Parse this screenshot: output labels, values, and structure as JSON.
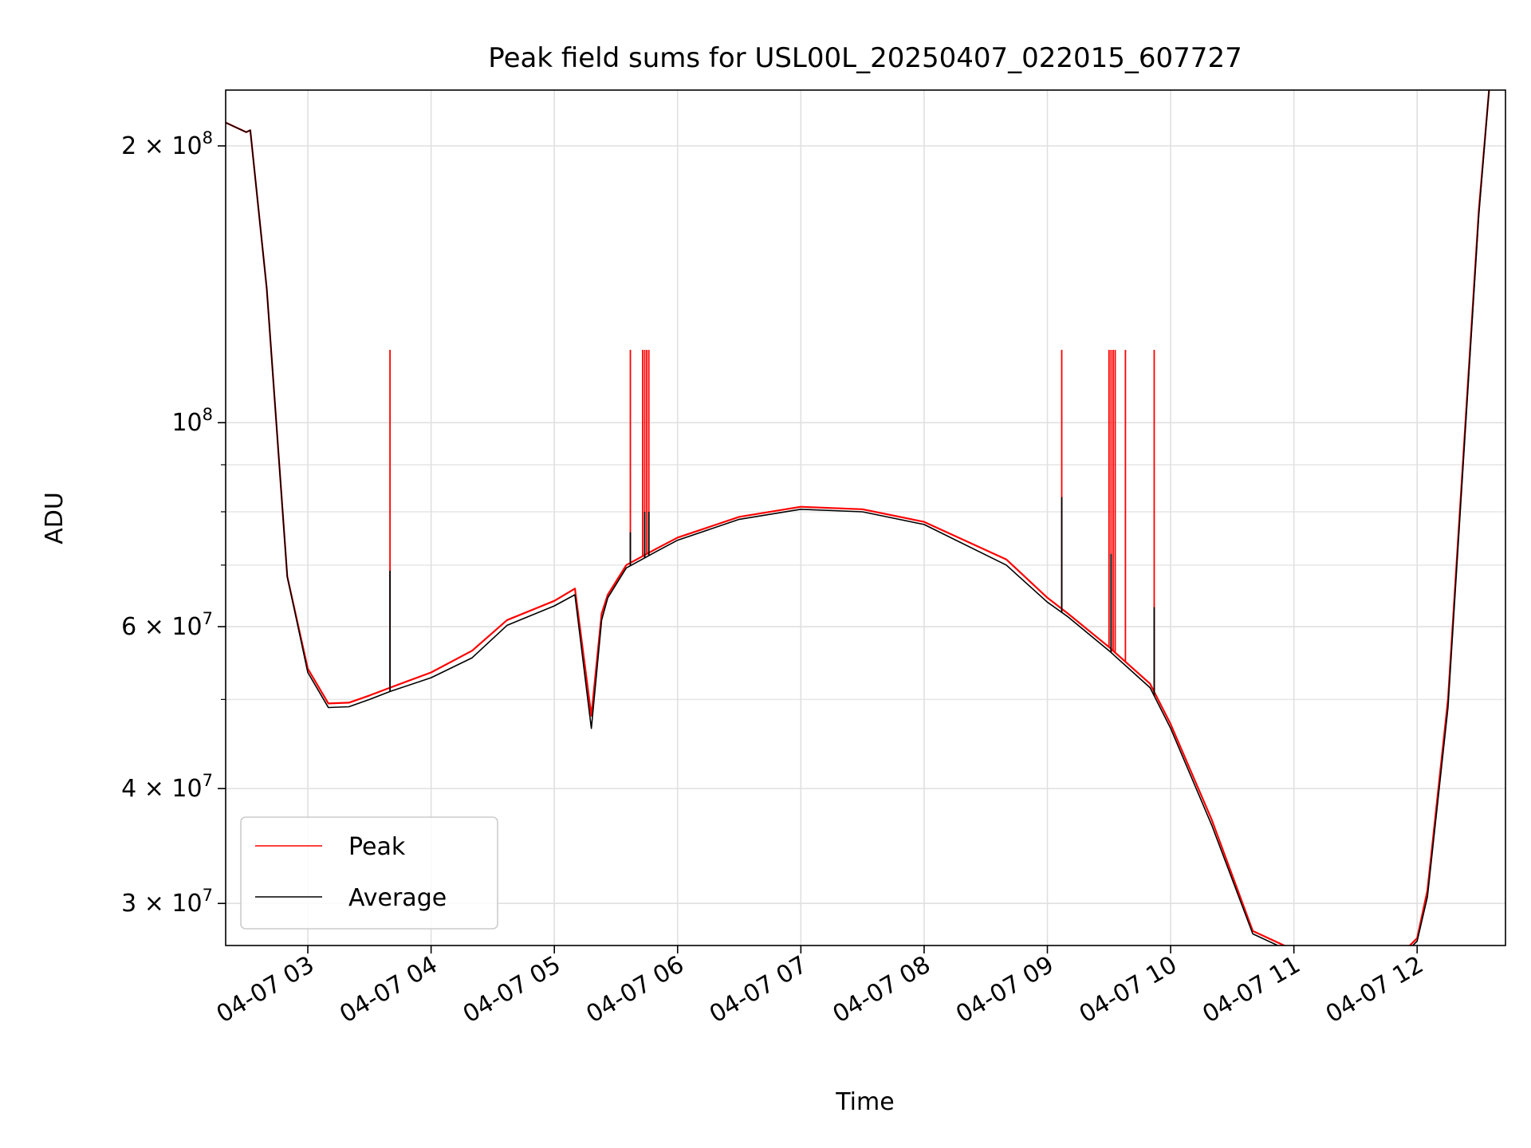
{
  "chart_data": {
    "type": "line",
    "title": "Peak field sums for USL00L_20250407_022015_607727",
    "xlabel": "Time",
    "ylabel": "ADU",
    "y_scale": "log",
    "grid": true,
    "legend_position": "lower-left",
    "x_ticks": [
      "04-07 03",
      "04-07 04",
      "04-07 05",
      "04-07 06",
      "04-07 07",
      "04-07 08",
      "04-07 09",
      "04-07 10",
      "04-07 11",
      "04-07 12"
    ],
    "y_ticks": [
      {
        "value": 30000000,
        "mantissa": "3",
        "exponent": "7"
      },
      {
        "value": 40000000,
        "mantissa": "4",
        "exponent": "7"
      },
      {
        "value": 60000000,
        "mantissa": "6",
        "exponent": "7"
      },
      {
        "value": 100000000,
        "mantissa": "",
        "exponent": "8"
      },
      {
        "value": 200000000,
        "mantissa": "2",
        "exponent": "8"
      }
    ],
    "xlim": [
      "2025-04-07 02:20",
      "2025-04-07 12:43"
    ],
    "ylim": [
      27000000,
      230000000
    ],
    "series": [
      {
        "name": "Peak",
        "color": "#ff0000",
        "x": [
          "2025-04-07 02:20",
          "2025-04-07 02:30",
          "2025-04-07 02:32",
          "2025-04-07 02:40",
          "2025-04-07 02:50",
          "2025-04-07 03:00",
          "2025-04-07 03:10",
          "2025-04-07 03:20",
          "2025-04-07 03:30",
          "2025-04-07 03:40",
          "2025-04-07 04:00",
          "2025-04-07 04:20",
          "2025-04-07 04:37",
          "2025-04-07 05:00",
          "2025-04-07 05:10",
          "2025-04-07 05:18",
          "2025-04-07 05:23",
          "2025-04-07 05:26",
          "2025-04-07 05:35",
          "2025-04-07 05:50",
          "2025-04-07 06:00",
          "2025-04-07 06:30",
          "2025-04-07 07:00",
          "2025-04-07 07:30",
          "2025-04-07 08:00",
          "2025-04-07 08:40",
          "2025-04-07 09:00",
          "2025-04-07 09:10",
          "2025-04-07 09:30",
          "2025-04-07 09:50",
          "2025-04-07 10:00",
          "2025-04-07 10:20",
          "2025-04-07 10:40",
          "2025-04-07 11:00",
          "2025-04-07 11:20",
          "2025-04-07 11:50",
          "2025-04-07 11:55",
          "2025-04-07 12:00",
          "2025-04-07 12:05",
          "2025-04-07 12:15",
          "2025-04-07 12:30",
          "2025-04-07 12:35",
          "2025-04-07 12:43"
        ],
        "values": [
          212000000,
          207000000,
          208000000,
          140000000,
          68000000,
          54000000,
          49500000,
          49600000,
          50500000,
          51500000,
          53500000,
          56500000,
          61000000,
          64000000,
          66000000,
          48000000,
          62000000,
          65000000,
          70000000,
          73000000,
          75000000,
          79000000,
          81000000,
          80500000,
          78000000,
          71000000,
          64500000,
          62000000,
          57000000,
          52000000,
          47000000,
          37000000,
          28000000,
          26700000,
          26600000,
          26600000,
          26800000,
          27500000,
          31000000,
          50000000,
          170000000,
          230000000,
          240000000
        ],
        "spikes": [
          {
            "x": "2025-04-07 03:40",
            "value": 120000000
          },
          {
            "x": "2025-04-07 05:37",
            "value": 120000000
          },
          {
            "x": "2025-04-07 05:43",
            "value": 120000000
          },
          {
            "x": "2025-04-07 05:44",
            "value": 120000000
          },
          {
            "x": "2025-04-07 05:45",
            "value": 120000000
          },
          {
            "x": "2025-04-07 05:46",
            "value": 120000000
          },
          {
            "x": "2025-04-07 09:07",
            "value": 120000000
          },
          {
            "x": "2025-04-07 09:30",
            "value": 120000000
          },
          {
            "x": "2025-04-07 09:31",
            "value": 120000000
          },
          {
            "x": "2025-04-07 09:32",
            "value": 120000000
          },
          {
            "x": "2025-04-07 09:33",
            "value": 120000000
          },
          {
            "x": "2025-04-07 09:38",
            "value": 120000000
          },
          {
            "x": "2025-04-07 09:52",
            "value": 120000000
          }
        ]
      },
      {
        "name": "Average",
        "color": "#000000",
        "x": [
          "2025-04-07 02:20",
          "2025-04-07 02:30",
          "2025-04-07 02:32",
          "2025-04-07 02:40",
          "2025-04-07 02:50",
          "2025-04-07 03:00",
          "2025-04-07 03:10",
          "2025-04-07 03:20",
          "2025-04-07 03:30",
          "2025-04-07 03:40",
          "2025-04-07 04:00",
          "2025-04-07 04:20",
          "2025-04-07 04:37",
          "2025-04-07 05:00",
          "2025-04-07 05:10",
          "2025-04-07 05:18",
          "2025-04-07 05:23",
          "2025-04-07 05:26",
          "2025-04-07 05:35",
          "2025-04-07 05:50",
          "2025-04-07 06:00",
          "2025-04-07 06:30",
          "2025-04-07 07:00",
          "2025-04-07 07:30",
          "2025-04-07 08:00",
          "2025-04-07 08:40",
          "2025-04-07 09:00",
          "2025-04-07 09:10",
          "2025-04-07 09:30",
          "2025-04-07 09:50",
          "2025-04-07 10:00",
          "2025-04-07 10:20",
          "2025-04-07 10:40",
          "2025-04-07 11:00",
          "2025-04-07 11:20",
          "2025-04-07 11:50",
          "2025-04-07 11:55",
          "2025-04-07 12:00",
          "2025-04-07 12:05",
          "2025-04-07 12:15",
          "2025-04-07 12:30",
          "2025-04-07 12:35",
          "2025-04-07 12:43"
        ],
        "values": [
          212000000,
          207000000,
          208000000,
          140000000,
          68000000,
          53500000,
          49000000,
          49100000,
          50000000,
          51000000,
          52800000,
          55500000,
          60200000,
          63200000,
          65000000,
          46500000,
          61000000,
          64500000,
          69500000,
          72500000,
          74500000,
          78500000,
          80500000,
          80000000,
          77500000,
          70000000,
          63800000,
          61500000,
          56500000,
          51500000,
          46500000,
          36500000,
          27800000,
          26500000,
          26400000,
          26400000,
          26600000,
          27300000,
          30500000,
          49000000,
          168000000,
          230000000,
          240000000
        ],
        "spikes": [
          {
            "x": "2025-04-07 03:40",
            "value": 69000000
          },
          {
            "x": "2025-04-07 05:37",
            "value": 76000000
          },
          {
            "x": "2025-04-07 05:44",
            "value": 80000000
          },
          {
            "x": "2025-04-07 05:46",
            "value": 80000000
          },
          {
            "x": "2025-04-07 09:07",
            "value": 83000000
          },
          {
            "x": "2025-04-07 09:31",
            "value": 72000000
          },
          {
            "x": "2025-04-07 09:52",
            "value": 63000000
          }
        ]
      }
    ]
  }
}
